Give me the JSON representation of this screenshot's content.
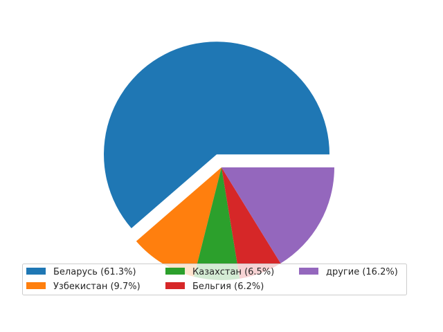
{
  "chart_data": {
    "type": "pie",
    "title": "",
    "series": [
      {
        "name": "Беларусь",
        "value": 61.3,
        "color": "#1f77b4",
        "exploded": true
      },
      {
        "name": "Узбекистан",
        "value": 9.7,
        "color": "#ff7f0e",
        "exploded": false
      },
      {
        "name": "Казахстан",
        "value": 6.5,
        "color": "#2ca02c",
        "exploded": false
      },
      {
        "name": "Бельгия",
        "value": 6.2,
        "color": "#d62728",
        "exploded": false
      },
      {
        "name": "другие",
        "value": 16.2,
        "color": "#9467bd",
        "exploded": false
      }
    ],
    "legend_labels": [
      "Беларусь (61.3%)",
      "Узбекистан (9.7%)",
      "Казахстан (6.5%)",
      "Бельгия (6.2%)",
      "другие (16.2%)"
    ],
    "legend_placement": "lower-center",
    "legend_columns": 3,
    "start_angle_deg": 0,
    "direction": "counterclockwise"
  }
}
